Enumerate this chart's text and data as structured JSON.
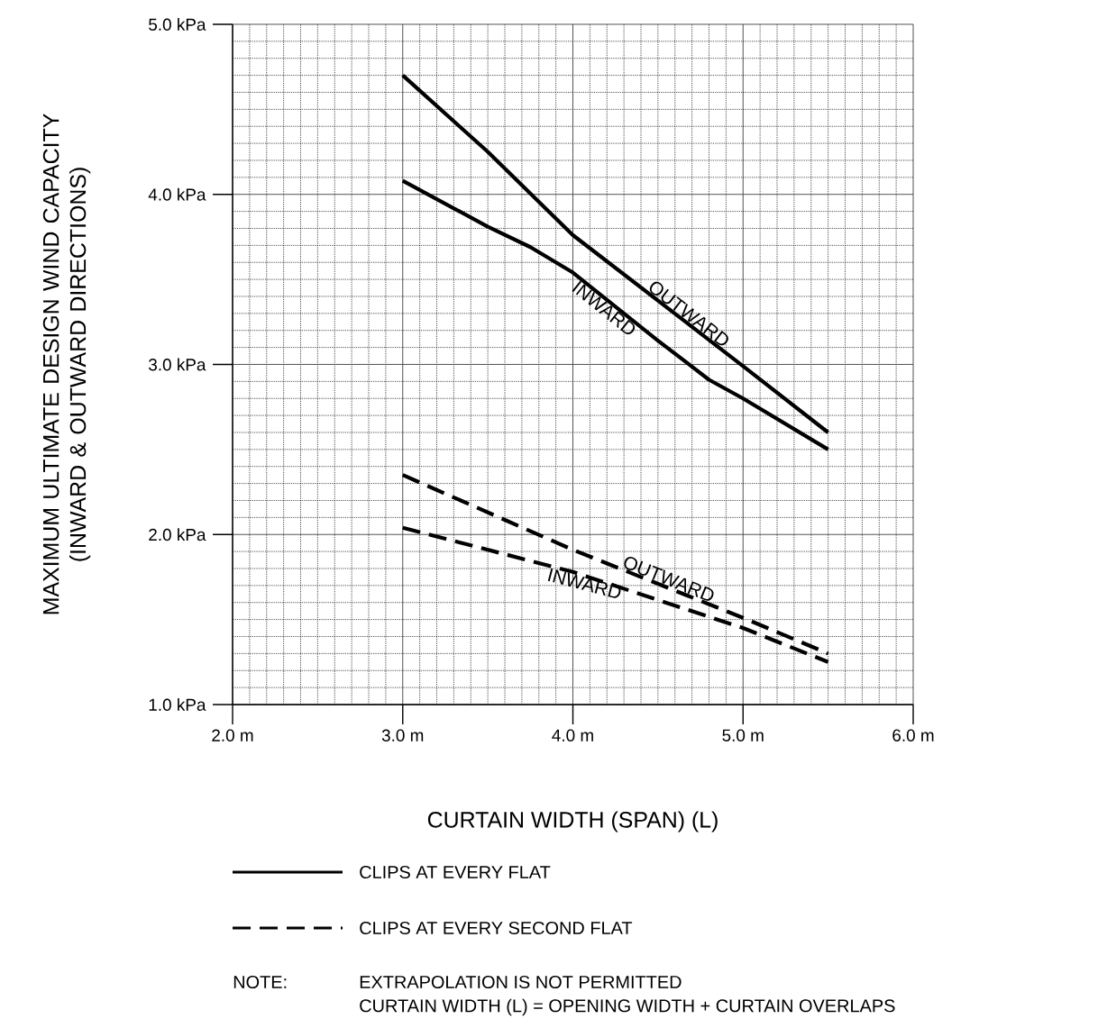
{
  "chart_data": {
    "type": "line",
    "xlabel": "CURTAIN WIDTH (SPAN) (L)",
    "ylabel": "MAXIMUM ULTIMATE DESIGN WIND CAPACITY (INWARD & OUTWARD DIRECTIONS)",
    "xlim": [
      2,
      6
    ],
    "ylim": [
      1,
      5
    ],
    "xticks": [
      {
        "value": 2,
        "label": "2.0 m"
      },
      {
        "value": 3,
        "label": "3.0 m"
      },
      {
        "value": 4,
        "label": "4.0 m"
      },
      {
        "value": 5,
        "label": "5.0 m"
      },
      {
        "value": 6,
        "label": "6.0 m"
      }
    ],
    "yticks": [
      {
        "value": 1,
        "label": "1.0 kPa"
      },
      {
        "value": 2,
        "label": "2.0 kPa"
      },
      {
        "value": 3,
        "label": "3.0 kPa"
      },
      {
        "value": 4,
        "label": "4.0 kPa"
      },
      {
        "value": 5,
        "label": "5.0 kPa"
      }
    ],
    "grid": true,
    "series": [
      {
        "name": "OUTWARD",
        "color": "#000000",
        "line_style": "solid",
        "x": [
          3.0,
          3.5,
          4.0,
          5.0,
          5.5
        ],
        "values": [
          4.7,
          4.25,
          3.76,
          2.99,
          2.6
        ]
      },
      {
        "name": "INWARD",
        "color": "#000000",
        "line_style": "solid",
        "x": [
          3.0,
          3.5,
          3.75,
          4.0,
          4.5,
          4.8,
          5.0,
          5.5
        ],
        "values": [
          4.08,
          3.81,
          3.69,
          3.54,
          3.14,
          2.91,
          2.8,
          2.5
        ]
      },
      {
        "name": "OUTWARD",
        "color": "#000000",
        "line_style": "dashed",
        "x": [
          3.0,
          4.0,
          5.0,
          5.5
        ],
        "values": [
          2.35,
          1.91,
          1.51,
          1.3
        ]
      },
      {
        "name": "INWARD",
        "color": "#000000",
        "line_style": "dashed",
        "x": [
          3.0,
          4.0,
          5.0,
          5.5
        ],
        "values": [
          2.04,
          1.78,
          1.45,
          1.25
        ]
      }
    ],
    "annotations": [
      "CLIPS AT EVERY FLAT",
      "CLIPS AT EVERY SECOND FLAT",
      "NOTE:",
      "EXTRAPOLATION IS NOT PERMITTED",
      "CURTAIN WIDTH (L) = OPENING WIDTH + CURTAIN OVERLAPS"
    ]
  }
}
